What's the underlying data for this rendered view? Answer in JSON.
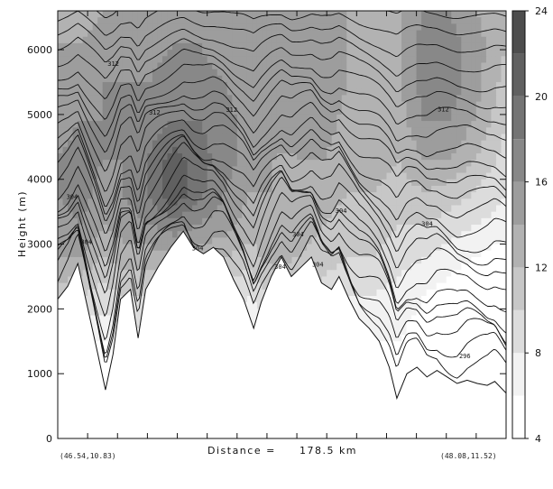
{
  "chart_data": {
    "type": "heatmap",
    "xlabel_prefix": "Distance =",
    "distance_value": "178.5 km",
    "ylabel": "Height (m)",
    "start_coord": "(46.54,10.83)",
    "end_coord": "(48.08,11.52)",
    "xlim": [
      0,
      178.5
    ],
    "ylim": [
      0,
      6600
    ],
    "y_ticks": [
      0,
      1000,
      2000,
      3000,
      4000,
      5000,
      6000
    ],
    "colorbar": {
      "ticks": [
        4,
        8,
        12,
        16,
        20,
        24
      ],
      "levels": [
        4,
        6,
        8,
        10,
        12,
        14,
        16,
        18,
        20,
        22,
        24
      ],
      "colors": [
        "#ffffff",
        "#f2f2f2",
        "#dcdcdc",
        "#c7c7c7",
        "#b2b2b2",
        "#9d9d9d",
        "#888888",
        "#747474",
        "#606060",
        "#4d4d4d"
      ]
    },
    "contour_labels": [
      "312",
      "312",
      "312",
      "304",
      "304",
      "304",
      "304",
      "304",
      "304",
      "312",
      "304",
      "296",
      "304"
    ],
    "terrain": [
      [
        0,
        2150
      ],
      [
        4,
        2350
      ],
      [
        8,
        2700
      ],
      [
        12,
        2000
      ],
      [
        16,
        1300
      ],
      [
        19,
        750
      ],
      [
        22,
        1300
      ],
      [
        25,
        2150
      ],
      [
        29,
        2300
      ],
      [
        32,
        1550
      ],
      [
        35,
        2300
      ],
      [
        40,
        2650
      ],
      [
        45,
        2950
      ],
      [
        50,
        3200
      ],
      [
        54,
        2950
      ],
      [
        58,
        2850
      ],
      [
        62,
        2950
      ],
      [
        66,
        2800
      ],
      [
        70,
        2450
      ],
      [
        74,
        2150
      ],
      [
        78,
        1700
      ],
      [
        81,
        2100
      ],
      [
        85,
        2500
      ],
      [
        89,
        2800
      ],
      [
        93,
        2500
      ],
      [
        97,
        2650
      ],
      [
        101,
        2800
      ],
      [
        105,
        2400
      ],
      [
        109,
        2300
      ],
      [
        112,
        2500
      ],
      [
        116,
        2150
      ],
      [
        120,
        1850
      ],
      [
        124,
        1700
      ],
      [
        128,
        1500
      ],
      [
        132,
        1100
      ],
      [
        135,
        620
      ],
      [
        139,
        1000
      ],
      [
        143,
        1100
      ],
      [
        147,
        950
      ],
      [
        151,
        1050
      ],
      [
        155,
        950
      ],
      [
        159,
        850
      ],
      [
        163,
        900
      ],
      [
        167,
        850
      ],
      [
        171,
        820
      ],
      [
        174,
        880
      ],
      [
        178.5,
        700
      ]
    ],
    "field": {
      "x": [
        0,
        9,
        18,
        26,
        36,
        46,
        56,
        66,
        76,
        86,
        96,
        106,
        116,
        126,
        136,
        146,
        156,
        166,
        178.5
      ],
      "z": [
        0,
        800,
        1500,
        2200,
        2800,
        3300,
        3800,
        4300,
        4900,
        5500,
        6100,
        6600
      ],
      "values": [
        [
          2,
          2,
          2,
          3,
          3,
          3,
          3,
          3,
          3,
          3,
          3,
          3,
          3,
          3,
          4,
          3,
          3,
          2,
          2
        ],
        [
          4,
          4,
          4,
          5,
          5,
          5,
          5,
          5,
          5,
          5,
          5,
          5,
          5,
          5,
          5,
          4,
          3,
          3,
          2
        ],
        [
          7,
          6,
          6,
          7,
          7,
          7,
          7,
          6,
          6,
          7,
          7,
          7,
          6,
          6,
          6,
          5,
          4,
          3,
          3
        ],
        [
          11,
          10,
          9,
          10,
          10,
          10,
          10,
          9,
          8,
          10,
          10,
          9,
          8,
          8,
          7,
          6,
          5,
          4,
          4
        ],
        [
          14,
          14,
          12,
          13,
          13,
          14,
          13,
          12,
          11,
          13,
          12,
          11,
          10,
          10,
          9,
          8,
          7,
          6,
          5
        ],
        [
          15,
          16,
          14,
          15,
          16,
          17,
          16,
          15,
          13,
          14,
          13,
          12,
          11,
          11,
          10,
          10,
          9,
          8,
          7
        ],
        [
          16,
          17,
          15,
          16,
          18,
          22,
          19,
          16,
          14,
          14,
          13,
          13,
          12,
          12,
          11,
          12,
          11,
          10,
          8
        ],
        [
          16,
          17,
          16,
          16,
          18,
          21,
          19,
          17,
          15,
          14,
          14,
          14,
          13,
          13,
          12,
          14,
          14,
          12,
          9
        ],
        [
          15,
          16,
          16,
          16,
          17,
          18,
          18,
          17,
          15,
          14,
          14,
          15,
          13,
          13,
          13,
          16,
          16,
          14,
          10
        ],
        [
          15,
          15,
          16,
          16,
          16,
          17,
          17,
          16,
          15,
          14,
          15,
          16,
          14,
          13,
          14,
          17,
          17,
          15,
          11
        ],
        [
          14,
          14,
          15,
          15,
          15,
          16,
          16,
          15,
          14,
          14,
          15,
          16,
          14,
          13,
          14,
          17,
          17,
          15,
          12
        ],
        [
          13,
          13,
          14,
          14,
          14,
          15,
          15,
          14,
          14,
          14,
          15,
          15,
          14,
          13,
          14,
          16,
          16,
          14,
          12
        ]
      ]
    }
  }
}
